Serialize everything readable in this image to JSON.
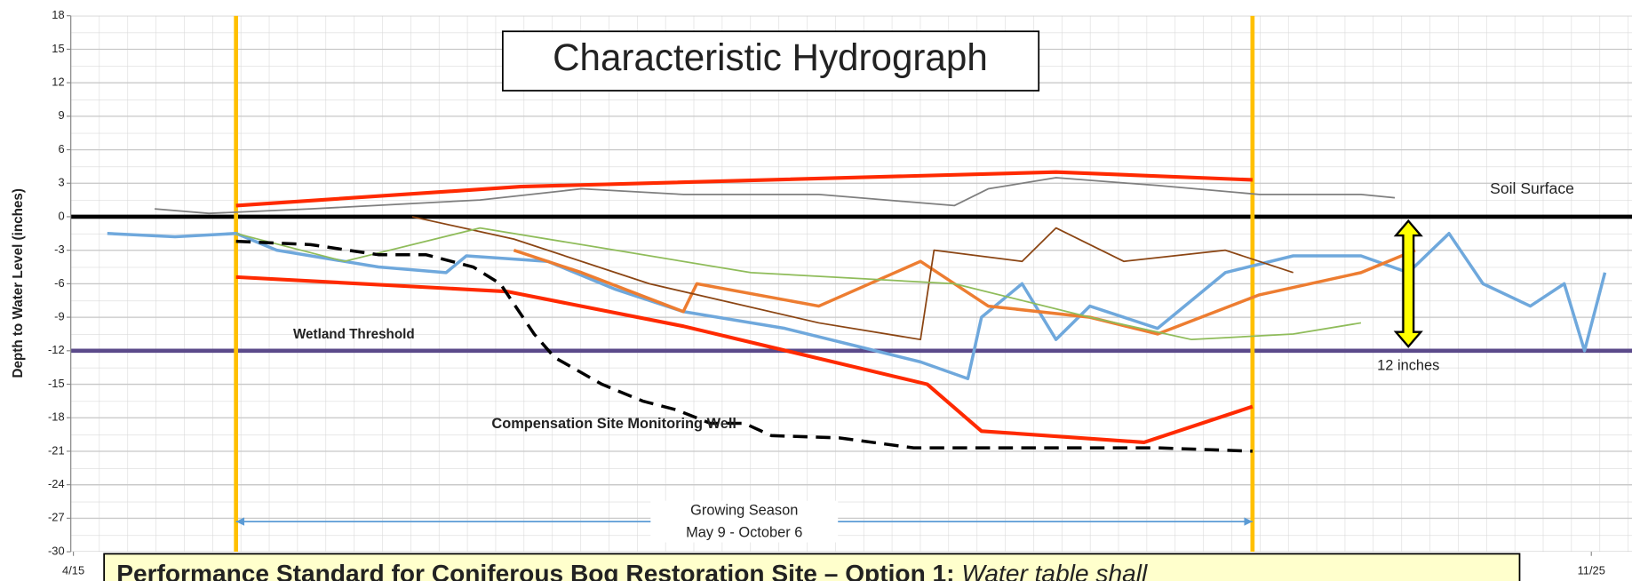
{
  "chart_data": {
    "type": "line",
    "title": "Characteristic Hydrograph",
    "y_label": "Depth to Water Level (inches)",
    "xlim": [
      0,
      230
    ],
    "xticks": [
      {
        "value": 0,
        "label": "4/15"
      },
      {
        "value": 224,
        "label": "11/25"
      }
    ],
    "ylim": [
      -30,
      18
    ],
    "yticks": [
      -30,
      -27,
      -24,
      -21,
      -18,
      -15,
      -12,
      -9,
      -6,
      -3,
      0,
      3,
      6,
      9,
      12,
      15,
      18
    ],
    "grid": true,
    "series": [
      {
        "color": "#6fa8dc",
        "width": 3,
        "x": [
          5,
          15,
          24,
          30,
          45,
          55,
          58,
          70,
          80,
          90,
          105,
          115,
          125,
          132,
          134,
          140,
          145,
          150,
          160,
          170,
          180,
          190,
          197,
          203,
          208,
          215,
          220,
          223,
          226
        ],
        "values": [
          -1.5,
          -1.8,
          -1.5,
          -3,
          -4.5,
          -5,
          -3.5,
          -4,
          -6.5,
          -8.5,
          -10,
          -11.5,
          -13,
          -14.5,
          -9,
          -6,
          -11,
          -8,
          -10,
          -5,
          -3.5,
          -3.5,
          -5,
          -1.5,
          -6,
          -8,
          -6,
          -12,
          -5
        ]
      },
      {
        "color": "#7f7f7f",
        "width": 1.5,
        "x": [
          12,
          20,
          35,
          60,
          75,
          90,
          110,
          130,
          135,
          145,
          160,
          175,
          190,
          195
        ],
        "values": [
          0.7,
          0.3,
          0.7,
          1.5,
          2.5,
          2,
          2,
          1,
          2.5,
          3.5,
          2.8,
          2,
          2,
          1.7
        ]
      },
      {
        "color": "#ed7d31",
        "width": 3,
        "x": [
          65,
          75,
          90,
          92,
          110,
          125,
          135,
          150,
          160,
          175,
          190,
          198
        ],
        "values": [
          -3,
          -5,
          -8.5,
          -6,
          -8,
          -4,
          -8,
          -9,
          -10.5,
          -7,
          -5,
          -3
        ]
      },
      {
        "color": "#8b4513",
        "width": 1.5,
        "x": [
          50,
          65,
          85,
          110,
          125,
          127,
          140,
          145,
          155,
          170,
          180
        ],
        "values": [
          0,
          -2,
          -6,
          -9.5,
          -11,
          -3,
          -4,
          -1,
          -4,
          -3,
          -5
        ]
      },
      {
        "color": "#8fbc5a",
        "width": 1.5,
        "x": [
          24,
          40,
          60,
          80,
          100,
          130,
          150,
          165,
          180,
          190
        ],
        "values": [
          -1.5,
          -4,
          -1,
          -3,
          -5,
          -6,
          -9,
          -11,
          -10.5,
          -9.5
        ]
      },
      {
        "color": "#ff2a00",
        "width": 3.5,
        "x": [
          24,
          66,
          145,
          174
        ],
        "values": [
          1,
          2.7,
          4,
          3.3
        ]
      },
      {
        "color": "#ff2a00",
        "width": 3.5,
        "x": [
          24,
          64,
          90,
          126,
          134,
          158,
          174
        ],
        "values": [
          -5.4,
          -6.7,
          -9.8,
          -15,
          -19.2,
          -20.2,
          -17
        ]
      },
      {
        "name": "Compensation Site Monitoring Well",
        "color": "#000000",
        "width": 3,
        "dashed": true,
        "x": [
          24,
          35,
          45,
          52,
          59,
          63,
          68,
          71,
          78,
          84,
          89,
          94,
          99,
          103,
          113,
          124,
          145,
          160,
          174
        ],
        "values": [
          -2.2,
          -2.5,
          -3.4,
          -3.4,
          -4.5,
          -6,
          -10.5,
          -12.6,
          -15,
          -16.5,
          -17.3,
          -18.5,
          -18.5,
          -19.6,
          -19.8,
          -20.7,
          -20.7,
          -20.7,
          -21
        ]
      }
    ],
    "hlines": [
      {
        "value": 0,
        "color": "#000000",
        "label": "Soil Surface"
      },
      {
        "value": -12,
        "color": "#5b4a8a",
        "label": "Wetland Threshold"
      }
    ],
    "vlines": [
      {
        "value": 24,
        "color": "#ffc000"
      },
      {
        "value": 174,
        "color": "#ffc000"
      }
    ],
    "span": {
      "start": 24,
      "end": 174,
      "y": -27.3,
      "color": "#5b9bd5",
      "labels": [
        "Growing Season",
        "May 9 - October 6"
      ]
    },
    "depth_arrow": {
      "x": 197,
      "from": 0,
      "to": -12,
      "color": "#ffff00",
      "label": "12 inches"
    },
    "footer": {
      "bold": "Performance Standard for Coniferous Bog Restoration Site – Option 1:",
      "italic": " Water table shall"
    }
  }
}
